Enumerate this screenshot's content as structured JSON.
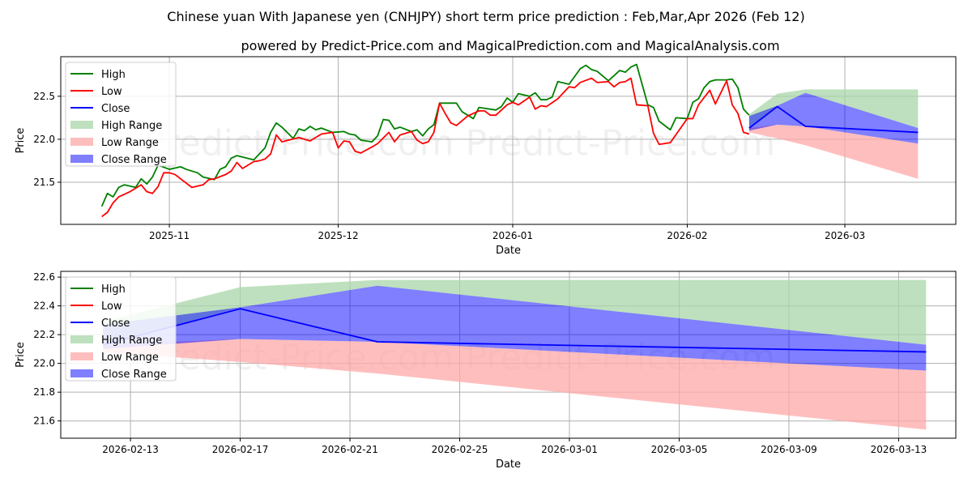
{
  "title": "Chinese yuan With Japanese yen (CNHJPY) short term price prediction : Feb,Mar,Apr 2026 (Feb 12)",
  "subtitle": "powered by Predict-Price.com and MagicalPrediction.com and MagicalAnalysis.com",
  "watermark": "Predict-Price.com",
  "colors": {
    "high": "#008000",
    "low": "#ff0000",
    "close": "#0000ff",
    "high_range": "#a8d5a8",
    "low_range": "#ffa8a8",
    "close_range": "#0000ff"
  },
  "legend": [
    "High",
    "Low",
    "Close",
    "High Range",
    "Low Range",
    "Close Range"
  ],
  "chart_data": [
    {
      "type": "line",
      "xlabel": "Date",
      "ylabel": "Price",
      "xlim": [
        "2025-10-12T17:00",
        "2026-03-20T17:00"
      ],
      "ylim": [
        21.01,
        22.96
      ],
      "yticks": [
        21.5,
        22.0,
        22.5
      ],
      "yticklabels": [
        "21.5",
        "22.0",
        "22.5"
      ],
      "xticks": [
        "2025-11-01",
        "2025-12-01",
        "2026-01-01",
        "2026-02-01",
        "2026-03-01"
      ],
      "xticklabels": [
        "2025-11",
        "2025-12",
        "2026-01",
        "2026-02",
        "2026-03"
      ],
      "grid": true,
      "legend_position": "upper-left",
      "series": [
        {
          "name": "High",
          "points": [
            [
              "2025-10-20",
              21.22
            ],
            [
              "2025-10-21",
              21.37
            ],
            [
              "2025-10-22",
              21.33
            ],
            [
              "2025-10-23",
              21.44
            ],
            [
              "2025-10-24",
              21.47
            ],
            [
              "2025-10-26",
              21.44
            ],
            [
              "2025-10-27",
              21.54
            ],
            [
              "2025-10-28",
              21.48
            ],
            [
              "2025-10-29",
              21.56
            ],
            [
              "2025-10-30",
              21.7
            ],
            [
              "2025-11-01",
              21.65
            ],
            [
              "2025-11-03",
              21.68
            ],
            [
              "2025-11-04",
              21.65
            ],
            [
              "2025-11-06",
              21.61
            ],
            [
              "2025-11-07",
              21.56
            ],
            [
              "2025-11-09",
              21.53
            ],
            [
              "2025-11-10",
              21.65
            ],
            [
              "2025-11-11",
              21.68
            ],
            [
              "2025-11-12",
              21.78
            ],
            [
              "2025-11-13",
              21.81
            ],
            [
              "2025-11-16",
              21.76
            ],
            [
              "2025-11-17",
              21.83
            ],
            [
              "2025-11-18",
              21.9
            ],
            [
              "2025-11-19",
              22.08
            ],
            [
              "2025-11-20",
              22.19
            ],
            [
              "2025-11-21",
              22.14
            ],
            [
              "2025-11-23",
              22.01
            ],
            [
              "2025-11-24",
              22.12
            ],
            [
              "2025-11-25",
              22.1
            ],
            [
              "2025-11-26",
              22.15
            ],
            [
              "2025-11-27",
              22.11
            ],
            [
              "2025-11-28",
              22.13
            ],
            [
              "2025-11-30",
              22.08
            ],
            [
              "2025-12-02",
              22.09
            ],
            [
              "2025-12-03",
              22.06
            ],
            [
              "2025-12-04",
              22.05
            ],
            [
              "2025-12-05",
              21.99
            ],
            [
              "2025-12-07",
              21.97
            ],
            [
              "2025-12-08",
              22.04
            ],
            [
              "2025-12-09",
              22.23
            ],
            [
              "2025-12-10",
              22.22
            ],
            [
              "2025-12-11",
              22.12
            ],
            [
              "2025-12-12",
              22.14
            ],
            [
              "2025-12-14",
              22.09
            ],
            [
              "2025-12-15",
              22.11
            ],
            [
              "2025-12-16",
              22.04
            ],
            [
              "2025-12-17",
              22.12
            ],
            [
              "2025-12-18",
              22.17
            ],
            [
              "2025-12-19",
              22.42
            ],
            [
              "2025-12-22",
              22.42
            ],
            [
              "2025-12-23",
              22.32
            ],
            [
              "2025-12-25",
              22.24
            ],
            [
              "2025-12-26",
              22.37
            ],
            [
              "2025-12-29",
              22.34
            ],
            [
              "2025-12-30",
              22.38
            ],
            [
              "2025-12-31",
              22.48
            ],
            [
              "2026-01-01",
              22.43
            ],
            [
              "2026-01-02",
              22.53
            ],
            [
              "2026-01-04",
              22.5
            ],
            [
              "2026-01-05",
              22.54
            ],
            [
              "2026-01-06",
              22.46
            ],
            [
              "2026-01-07",
              22.46
            ],
            [
              "2026-01-08",
              22.49
            ],
            [
              "2026-01-09",
              22.67
            ],
            [
              "2026-01-11",
              22.64
            ],
            [
              "2026-01-13",
              22.82
            ],
            [
              "2026-01-14",
              22.86
            ],
            [
              "2026-01-15",
              22.81
            ],
            [
              "2026-01-16",
              22.79
            ],
            [
              "2026-01-18",
              22.68
            ],
            [
              "2026-01-20",
              22.8
            ],
            [
              "2026-01-21",
              22.78
            ],
            [
              "2026-01-22",
              22.84
            ],
            [
              "2026-01-23",
              22.87
            ],
            [
              "2026-01-25",
              22.4
            ],
            [
              "2026-01-26",
              22.37
            ],
            [
              "2026-01-27",
              22.21
            ],
            [
              "2026-01-29",
              22.11
            ],
            [
              "2026-01-30",
              22.25
            ],
            [
              "2026-02-01",
              22.24
            ],
            [
              "2026-02-02",
              22.43
            ],
            [
              "2026-02-03",
              22.47
            ],
            [
              "2026-02-04",
              22.6
            ],
            [
              "2026-02-05",
              22.67
            ],
            [
              "2026-02-06",
              22.69
            ],
            [
              "2026-02-08",
              22.69
            ],
            [
              "2026-02-09",
              22.7
            ],
            [
              "2026-02-10",
              22.6
            ],
            [
              "2026-02-11",
              22.35
            ],
            [
              "2026-02-12",
              22.28
            ]
          ]
        },
        {
          "name": "Low",
          "points": [
            [
              "2025-10-20",
              21.1
            ],
            [
              "2025-10-21",
              21.15
            ],
            [
              "2025-10-22",
              21.26
            ],
            [
              "2025-10-23",
              21.33
            ],
            [
              "2025-10-25",
              21.39
            ],
            [
              "2025-10-27",
              21.47
            ],
            [
              "2025-10-28",
              21.39
            ],
            [
              "2025-10-29",
              21.37
            ],
            [
              "2025-10-30",
              21.45
            ],
            [
              "2025-10-31",
              21.61
            ],
            [
              "2025-11-01",
              21.61
            ],
            [
              "2025-11-02",
              21.59
            ],
            [
              "2025-11-04",
              21.49
            ],
            [
              "2025-11-05",
              21.44
            ],
            [
              "2025-11-07",
              21.47
            ],
            [
              "2025-11-08",
              21.53
            ],
            [
              "2025-11-09",
              21.54
            ],
            [
              "2025-11-11",
              21.59
            ],
            [
              "2025-11-12",
              21.63
            ],
            [
              "2025-11-13",
              21.73
            ],
            [
              "2025-11-14",
              21.66
            ],
            [
              "2025-11-16",
              21.74
            ],
            [
              "2025-11-17",
              21.75
            ],
            [
              "2025-11-18",
              21.77
            ],
            [
              "2025-11-19",
              21.83
            ],
            [
              "2025-11-20",
              22.05
            ],
            [
              "2025-11-21",
              21.97
            ],
            [
              "2025-11-24",
              22.02
            ],
            [
              "2025-11-26",
              21.98
            ],
            [
              "2025-11-28",
              22.06
            ],
            [
              "2025-11-30",
              22.08
            ],
            [
              "2025-12-01",
              21.9
            ],
            [
              "2025-12-02",
              21.98
            ],
            [
              "2025-12-03",
              21.97
            ],
            [
              "2025-12-04",
              21.86
            ],
            [
              "2025-12-05",
              21.84
            ],
            [
              "2025-12-07",
              21.91
            ],
            [
              "2025-12-08",
              21.95
            ],
            [
              "2025-12-10",
              22.08
            ],
            [
              "2025-12-11",
              21.97
            ],
            [
              "2025-12-12",
              22.05
            ],
            [
              "2025-12-14",
              22.09
            ],
            [
              "2025-12-15",
              21.99
            ],
            [
              "2025-12-16",
              21.95
            ],
            [
              "2025-12-17",
              21.97
            ],
            [
              "2025-12-18",
              22.08
            ],
            [
              "2025-12-19",
              22.42
            ],
            [
              "2025-12-20",
              22.3
            ],
            [
              "2025-12-21",
              22.19
            ],
            [
              "2025-12-22",
              22.16
            ],
            [
              "2025-12-24",
              22.27
            ],
            [
              "2025-12-26",
              22.33
            ],
            [
              "2025-12-27",
              22.33
            ],
            [
              "2025-12-28",
              22.28
            ],
            [
              "2025-12-29",
              22.28
            ],
            [
              "2025-12-31",
              22.4
            ],
            [
              "2026-01-01",
              22.43
            ],
            [
              "2026-01-02",
              22.4
            ],
            [
              "2026-01-04",
              22.49
            ],
            [
              "2026-01-05",
              22.35
            ],
            [
              "2026-01-06",
              22.39
            ],
            [
              "2026-01-07",
              22.38
            ],
            [
              "2026-01-09",
              22.47
            ],
            [
              "2026-01-11",
              22.61
            ],
            [
              "2026-01-12",
              22.6
            ],
            [
              "2026-01-13",
              22.66
            ],
            [
              "2026-01-15",
              22.71
            ],
            [
              "2026-01-16",
              22.66
            ],
            [
              "2026-01-18",
              22.67
            ],
            [
              "2026-01-19",
              22.61
            ],
            [
              "2026-01-20",
              22.66
            ],
            [
              "2026-01-21",
              22.67
            ],
            [
              "2026-01-22",
              22.71
            ],
            [
              "2026-01-23",
              22.4
            ],
            [
              "2026-01-25",
              22.39
            ],
            [
              "2026-01-26",
              22.07
            ],
            [
              "2026-01-27",
              21.94
            ],
            [
              "2026-01-29",
              21.96
            ],
            [
              "2026-02-01",
              22.24
            ],
            [
              "2026-02-02",
              22.24
            ],
            [
              "2026-02-03",
              22.4
            ],
            [
              "2026-02-05",
              22.57
            ],
            [
              "2026-02-06",
              22.41
            ],
            [
              "2026-02-08",
              22.68
            ],
            [
              "2026-02-09",
              22.4
            ],
            [
              "2026-02-10",
              22.3
            ],
            [
              "2026-02-11",
              22.08
            ],
            [
              "2026-02-12",
              22.06
            ]
          ]
        },
        {
          "name": "Close",
          "points": [
            [
              "2026-02-12",
              22.13
            ],
            [
              "2026-02-17",
              22.38
            ],
            [
              "2026-02-22",
              22.15
            ],
            [
              "2026-03-14",
              22.08
            ]
          ]
        }
      ],
      "ranges": [
        {
          "name": "High Range",
          "x": [
            "2026-02-12",
            "2026-02-17",
            "2026-02-22",
            "2026-03-14"
          ],
          "upper": [
            22.29,
            22.53,
            22.58,
            22.58
          ],
          "lower": [
            22.13,
            22.39,
            22.54,
            22.13
          ]
        },
        {
          "name": "Low Range",
          "x": [
            "2026-02-12",
            "2026-02-17",
            "2026-02-22",
            "2026-03-14"
          ],
          "upper": [
            22.13,
            22.17,
            22.15,
            21.95
          ],
          "lower": [
            22.08,
            22.01,
            21.93,
            21.54
          ]
        },
        {
          "name": "Close Range",
          "x": [
            "2026-02-12",
            "2026-02-17",
            "2026-02-22",
            "2026-03-14"
          ],
          "upper": [
            22.27,
            22.39,
            22.54,
            22.13
          ],
          "lower": [
            22.1,
            22.17,
            22.15,
            21.95
          ]
        }
      ]
    },
    {
      "type": "line",
      "xlabel": "Date",
      "ylabel": "Price",
      "xlim": [
        "2026-02-10T11:00",
        "2026-03-15T02:00"
      ],
      "ylim": [
        21.48,
        22.64
      ],
      "yticks": [
        21.6,
        21.8,
        22.0,
        22.2,
        22.4,
        22.6
      ],
      "yticklabels": [
        "21.6",
        "21.8",
        "22.0",
        "22.2",
        "22.4",
        "22.6"
      ],
      "xticks": [
        "2026-02-13",
        "2026-02-17",
        "2026-02-21",
        "2026-02-25",
        "2026-03-01",
        "2026-03-05",
        "2026-03-09",
        "2026-03-13"
      ],
      "xticklabels": [
        "2026-02-13",
        "2026-02-17",
        "2026-02-21",
        "2026-02-25",
        "2026-03-01",
        "2026-03-05",
        "2026-03-09",
        "2026-03-13"
      ],
      "grid": true,
      "legend_position": "upper-left",
      "series": [
        {
          "name": "Close",
          "points": [
            [
              "2026-02-12",
              22.13
            ],
            [
              "2026-02-17",
              22.38
            ],
            [
              "2026-02-22",
              22.15
            ],
            [
              "2026-03-14",
              22.08
            ]
          ]
        }
      ],
      "ranges": [
        {
          "name": "High Range",
          "x": [
            "2026-02-12",
            "2026-02-17",
            "2026-02-22",
            "2026-03-14"
          ],
          "upper": [
            22.29,
            22.53,
            22.58,
            22.58
          ],
          "lower": [
            22.13,
            22.39,
            22.54,
            22.13
          ]
        },
        {
          "name": "Low Range",
          "x": [
            "2026-02-12",
            "2026-02-17",
            "2026-02-22",
            "2026-03-14"
          ],
          "upper": [
            22.13,
            22.17,
            22.15,
            21.95
          ],
          "lower": [
            22.08,
            22.01,
            21.93,
            21.54
          ]
        },
        {
          "name": "Close Range",
          "x": [
            "2026-02-12",
            "2026-02-17",
            "2026-02-22",
            "2026-03-14"
          ],
          "upper": [
            22.27,
            22.39,
            22.54,
            22.13
          ],
          "lower": [
            22.1,
            22.17,
            22.15,
            21.95
          ]
        }
      ]
    }
  ]
}
